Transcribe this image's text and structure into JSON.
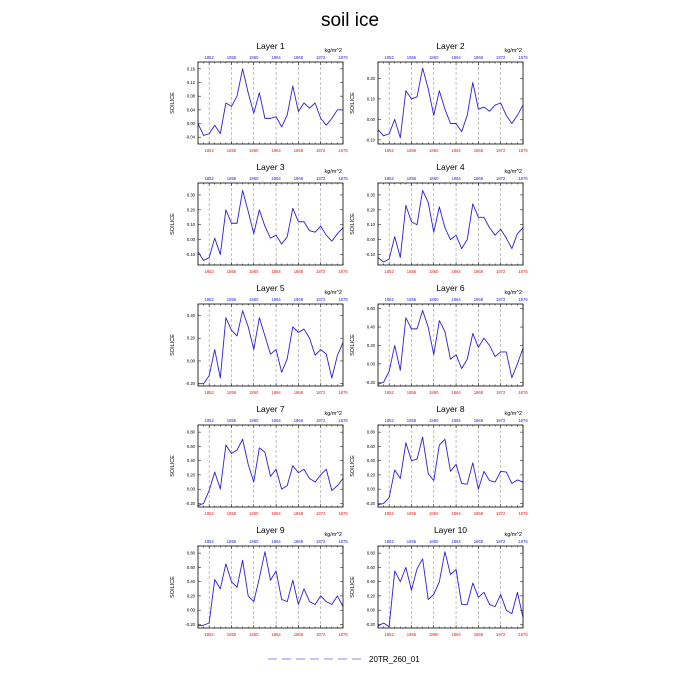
{
  "title": "soil ice",
  "colors": {
    "series": "#2a1fd6",
    "top_ticks": "#1f1fd0",
    "bottom_ticks": "#e01818",
    "legend": "#8a8aee",
    "grid": "#9a9a9a"
  },
  "legend": {
    "label": "20TR_260_01"
  },
  "chart_data": [
    {
      "type": "line",
      "title": "Layer 1",
      "units": "kg/m^2",
      "ylabel": "SOILICE",
      "x": [
        1850,
        1851,
        1852,
        1853,
        1854,
        1855,
        1856,
        1857,
        1858,
        1859,
        1860,
        1861,
        1862,
        1863,
        1864,
        1865,
        1866,
        1867,
        1868,
        1869,
        1870,
        1871,
        1872,
        1873,
        1874,
        1875,
        1876
      ],
      "ylim": [
        -0.06,
        0.18
      ],
      "yticks": [
        -0.04,
        0.0,
        0.04,
        0.08,
        0.12,
        0.16
      ],
      "xticks": [
        1852,
        1856,
        1860,
        1864,
        1868,
        1872,
        1876
      ],
      "series": [
        {
          "name": "20TR_260_01",
          "values": [
            0.0,
            -0.035,
            -0.03,
            -0.005,
            -0.03,
            0.06,
            0.05,
            0.08,
            0.16,
            0.09,
            0.03,
            0.09,
            0.015,
            0.015,
            0.02,
            -0.01,
            0.025,
            0.11,
            0.035,
            0.06,
            0.045,
            0.06,
            0.015,
            -0.005,
            0.015,
            0.04,
            0.04
          ]
        }
      ]
    },
    {
      "type": "line",
      "title": "Layer 2",
      "units": "kg/m^2",
      "ylabel": "SOILICE",
      "x": [
        1850,
        1851,
        1852,
        1853,
        1854,
        1855,
        1856,
        1857,
        1858,
        1859,
        1860,
        1861,
        1862,
        1863,
        1864,
        1865,
        1866,
        1867,
        1868,
        1869,
        1870,
        1871,
        1872,
        1873,
        1874,
        1875,
        1876
      ],
      "ylim": [
        -0.12,
        0.28
      ],
      "yticks": [
        -0.1,
        0.0,
        0.1,
        0.2
      ],
      "xticks": [
        1852,
        1856,
        1860,
        1864,
        1868,
        1872,
        1876
      ],
      "series": [
        {
          "name": "20TR_260_01",
          "values": [
            -0.05,
            -0.08,
            -0.07,
            0.0,
            -0.09,
            0.14,
            0.1,
            0.11,
            0.25,
            0.15,
            0.02,
            0.14,
            0.05,
            -0.02,
            -0.02,
            -0.06,
            0.02,
            0.18,
            0.05,
            0.06,
            0.04,
            0.07,
            0.08,
            0.02,
            -0.02,
            0.02,
            0.07
          ]
        }
      ]
    },
    {
      "type": "line",
      "title": "Layer 3",
      "units": "kg/m^2",
      "ylabel": "SOILICE",
      "x": [
        1850,
        1851,
        1852,
        1853,
        1854,
        1855,
        1856,
        1857,
        1858,
        1859,
        1860,
        1861,
        1862,
        1863,
        1864,
        1865,
        1866,
        1867,
        1868,
        1869,
        1870,
        1871,
        1872,
        1873,
        1874,
        1875,
        1876
      ],
      "ylim": [
        -0.17,
        0.38
      ],
      "yticks": [
        -0.1,
        0.0,
        0.1,
        0.2,
        0.3
      ],
      "xticks": [
        1852,
        1856,
        1860,
        1864,
        1868,
        1872,
        1876
      ],
      "series": [
        {
          "name": "20TR_260_01",
          "values": [
            -0.08,
            -0.14,
            -0.12,
            0.01,
            -0.1,
            0.2,
            0.11,
            0.11,
            0.33,
            0.19,
            0.04,
            0.2,
            0.09,
            0.01,
            0.03,
            -0.03,
            0.02,
            0.21,
            0.12,
            0.12,
            0.06,
            0.05,
            0.09,
            0.03,
            -0.01,
            0.04,
            0.08
          ]
        }
      ]
    },
    {
      "type": "line",
      "title": "Layer 4",
      "units": "kg/m^2",
      "ylabel": "SOILICE",
      "x": [
        1850,
        1851,
        1852,
        1853,
        1854,
        1855,
        1856,
        1857,
        1858,
        1859,
        1860,
        1861,
        1862,
        1863,
        1864,
        1865,
        1866,
        1867,
        1868,
        1869,
        1870,
        1871,
        1872,
        1873,
        1874,
        1875,
        1876
      ],
      "ylim": [
        -0.17,
        0.38
      ],
      "yticks": [
        -0.1,
        0.0,
        0.1,
        0.2,
        0.3
      ],
      "xticks": [
        1852,
        1856,
        1860,
        1864,
        1868,
        1872,
        1876
      ],
      "series": [
        {
          "name": "20TR_260_01",
          "values": [
            -0.12,
            -0.15,
            -0.13,
            0.02,
            -0.12,
            0.23,
            0.12,
            0.1,
            0.33,
            0.25,
            0.05,
            0.22,
            0.08,
            0.0,
            0.03,
            -0.06,
            0.0,
            0.24,
            0.15,
            0.15,
            0.08,
            0.03,
            0.07,
            0.01,
            -0.06,
            0.04,
            0.08
          ]
        }
      ]
    },
    {
      "type": "line",
      "title": "Layer 5",
      "units": "kg/m^2",
      "ylabel": "SOILICE",
      "x": [
        1850,
        1851,
        1852,
        1853,
        1854,
        1855,
        1856,
        1857,
        1858,
        1859,
        1860,
        1861,
        1862,
        1863,
        1864,
        1865,
        1866,
        1867,
        1868,
        1869,
        1870,
        1871,
        1872,
        1873,
        1874,
        1875,
        1876
      ],
      "ylim": [
        -0.22,
        0.5
      ],
      "yticks": [
        -0.2,
        0.0,
        0.2,
        0.4
      ],
      "xticks": [
        1852,
        1856,
        1860,
        1864,
        1868,
        1872,
        1876
      ],
      "series": [
        {
          "name": "20TR_260_01",
          "values": [
            -0.2,
            -0.2,
            -0.13,
            0.1,
            -0.15,
            0.38,
            0.27,
            0.22,
            0.44,
            0.3,
            0.1,
            0.38,
            0.22,
            0.06,
            0.1,
            -0.1,
            0.02,
            0.3,
            0.25,
            0.28,
            0.2,
            0.05,
            0.1,
            0.06,
            -0.15,
            0.05,
            0.16
          ]
        }
      ]
    },
    {
      "type": "line",
      "title": "Layer 6",
      "units": "kg/m^2",
      "ylabel": "SOILICE",
      "x": [
        1850,
        1851,
        1852,
        1853,
        1854,
        1855,
        1856,
        1857,
        1858,
        1859,
        1860,
        1861,
        1862,
        1863,
        1864,
        1865,
        1866,
        1867,
        1868,
        1869,
        1870,
        1871,
        1872,
        1873,
        1874,
        1875,
        1876
      ],
      "ylim": [
        -0.24,
        0.65
      ],
      "yticks": [
        -0.2,
        0.0,
        0.2,
        0.4,
        0.6
      ],
      "xticks": [
        1852,
        1856,
        1860,
        1864,
        1868,
        1872,
        1876
      ],
      "series": [
        {
          "name": "20TR_260_01",
          "values": [
            -0.22,
            -0.2,
            -0.08,
            0.2,
            -0.07,
            0.5,
            0.38,
            0.38,
            0.58,
            0.4,
            0.1,
            0.47,
            0.35,
            0.05,
            0.1,
            -0.05,
            0.05,
            0.33,
            0.18,
            0.28,
            0.2,
            0.08,
            0.13,
            0.13,
            -0.15,
            0.0,
            0.17
          ]
        }
      ]
    },
    {
      "type": "line",
      "title": "Layer 7",
      "units": "kg/m^2",
      "ylabel": "SOILICE",
      "x": [
        1850,
        1851,
        1852,
        1853,
        1854,
        1855,
        1856,
        1857,
        1858,
        1859,
        1860,
        1861,
        1862,
        1863,
        1864,
        1865,
        1866,
        1867,
        1868,
        1869,
        1870,
        1871,
        1872,
        1873,
        1874,
        1875,
        1876
      ],
      "ylim": [
        -0.25,
        0.9
      ],
      "yticks": [
        -0.2,
        0.0,
        0.2,
        0.4,
        0.6,
        0.8
      ],
      "xticks": [
        1852,
        1856,
        1860,
        1864,
        1868,
        1872,
        1876
      ],
      "series": [
        {
          "name": "20TR_260_01",
          "values": [
            -0.23,
            -0.2,
            -0.02,
            0.24,
            0.0,
            0.62,
            0.5,
            0.55,
            0.7,
            0.35,
            0.1,
            0.58,
            0.52,
            0.18,
            0.28,
            0.0,
            0.05,
            0.33,
            0.23,
            0.28,
            0.15,
            0.1,
            0.2,
            0.28,
            -0.02,
            0.05,
            0.15
          ]
        }
      ]
    },
    {
      "type": "line",
      "title": "Layer 8",
      "units": "kg/m^2",
      "ylabel": "SOILICE",
      "x": [
        1850,
        1851,
        1852,
        1853,
        1854,
        1855,
        1856,
        1857,
        1858,
        1859,
        1860,
        1861,
        1862,
        1863,
        1864,
        1865,
        1866,
        1867,
        1868,
        1869,
        1870,
        1871,
        1872,
        1873,
        1874,
        1875,
        1876
      ],
      "ylim": [
        -0.25,
        0.9
      ],
      "yticks": [
        -0.2,
        0.0,
        0.2,
        0.4,
        0.6,
        0.8
      ],
      "xticks": [
        1852,
        1856,
        1860,
        1864,
        1868,
        1872,
        1876
      ],
      "series": [
        {
          "name": "20TR_260_01",
          "values": [
            -0.22,
            -0.2,
            -0.12,
            0.27,
            0.15,
            0.65,
            0.4,
            0.42,
            0.73,
            0.22,
            0.12,
            0.62,
            0.7,
            0.25,
            0.35,
            0.08,
            0.07,
            0.37,
            0.0,
            0.25,
            0.12,
            0.1,
            0.25,
            0.24,
            0.08,
            0.13,
            0.1
          ]
        }
      ]
    },
    {
      "type": "line",
      "title": "Layer 9",
      "units": "kg/m^2",
      "ylabel": "SOILICE",
      "x": [
        1850,
        1851,
        1852,
        1853,
        1854,
        1855,
        1856,
        1857,
        1858,
        1859,
        1860,
        1861,
        1862,
        1863,
        1864,
        1865,
        1866,
        1867,
        1868,
        1869,
        1870,
        1871,
        1872,
        1873,
        1874,
        1875,
        1876
      ],
      "ylim": [
        -0.25,
        0.9
      ],
      "yticks": [
        -0.2,
        0.0,
        0.2,
        0.4,
        0.6,
        0.8
      ],
      "xticks": [
        1852,
        1856,
        1860,
        1864,
        1868,
        1872,
        1876
      ],
      "series": [
        {
          "name": "20TR_260_01",
          "values": [
            -0.22,
            -0.21,
            -0.18,
            0.43,
            0.3,
            0.65,
            0.4,
            0.32,
            0.7,
            0.2,
            0.12,
            0.45,
            0.82,
            0.42,
            0.55,
            0.15,
            0.12,
            0.42,
            0.08,
            0.3,
            0.12,
            0.08,
            0.2,
            0.12,
            0.08,
            0.2,
            0.05
          ]
        }
      ]
    },
    {
      "type": "line",
      "title": "Layer 10",
      "units": "kg/m^2",
      "ylabel": "SOILICE",
      "x": [
        1850,
        1851,
        1852,
        1853,
        1854,
        1855,
        1856,
        1857,
        1858,
        1859,
        1860,
        1861,
        1862,
        1863,
        1864,
        1865,
        1866,
        1867,
        1868,
        1869,
        1870,
        1871,
        1872,
        1873,
        1874,
        1875,
        1876
      ],
      "ylim": [
        -0.25,
        0.9
      ],
      "yticks": [
        -0.2,
        0.0,
        0.2,
        0.4,
        0.6,
        0.8
      ],
      "xticks": [
        1852,
        1856,
        1860,
        1864,
        1868,
        1872,
        1876
      ],
      "series": [
        {
          "name": "20TR_260_01",
          "values": [
            -0.22,
            -0.18,
            -0.23,
            0.55,
            0.4,
            0.6,
            0.28,
            0.58,
            0.72,
            0.15,
            0.22,
            0.4,
            0.82,
            0.5,
            0.57,
            0.08,
            0.08,
            0.38,
            0.18,
            0.25,
            0.08,
            0.05,
            0.22,
            0.0,
            -0.05,
            0.25,
            -0.1
          ]
        }
      ]
    }
  ]
}
